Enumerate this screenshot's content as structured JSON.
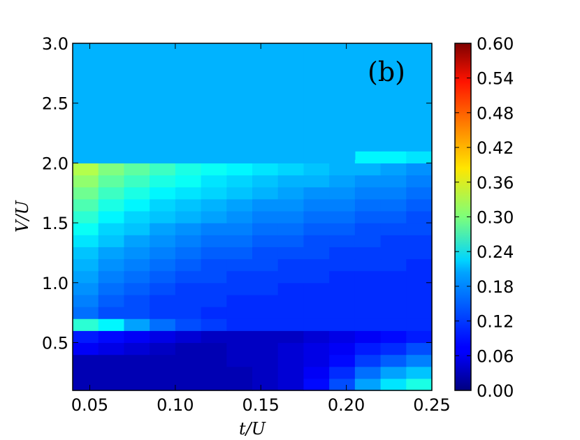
{
  "chart_data": {
    "type": "heatmap",
    "panel_label": "(b)",
    "xlabel": "t/U",
    "ylabel": "V/U",
    "xlim": [
      0.04,
      0.25
    ],
    "ylim": [
      0.1,
      3.0
    ],
    "x_ticks": [
      0.05,
      0.1,
      0.15,
      0.2,
      0.25
    ],
    "x_tick_labels": [
      "0.05",
      "0.10",
      "0.15",
      "0.20",
      "0.25"
    ],
    "y_ticks": [
      0.5,
      1.0,
      1.5,
      2.0,
      2.5,
      3.0
    ],
    "y_tick_labels": [
      "0.5",
      "1.0",
      "1.5",
      "2.0",
      "2.5",
      "3.0"
    ],
    "colormap": "jet",
    "colorbar": {
      "min": 0.0,
      "max": 0.6,
      "ticks": [
        0.0,
        0.06,
        0.12,
        0.18,
        0.24,
        0.3,
        0.36,
        0.42,
        0.48,
        0.54,
        0.6
      ],
      "tick_labels": [
        "0.00",
        "0.06",
        "0.12",
        "0.18",
        "0.24",
        "0.30",
        "0.36",
        "0.42",
        "0.48",
        "0.54",
        "0.60"
      ]
    },
    "x_centers": [
      0.0475,
      0.0625,
      0.0775,
      0.0925,
      0.1075,
      0.1225,
      0.1375,
      0.1525,
      0.1675,
      0.1825,
      0.1975,
      0.2125,
      0.2275,
      0.2425
    ],
    "y_centers": [
      0.15,
      0.25,
      0.35,
      0.45,
      0.55,
      0.65,
      0.75,
      0.85,
      0.95,
      1.05,
      1.15,
      1.25,
      1.35,
      1.45,
      1.55,
      1.65,
      1.75,
      1.85,
      1.95,
      2.05,
      2.5
    ],
    "values": [
      [
        0.03,
        0.03,
        0.03,
        0.03,
        0.03,
        0.03,
        0.03,
        0.04,
        0.05,
        0.08,
        0.12,
        0.17,
        0.21,
        0.24
      ],
      [
        0.03,
        0.03,
        0.03,
        0.03,
        0.03,
        0.03,
        0.03,
        0.04,
        0.05,
        0.07,
        0.1,
        0.14,
        0.17,
        0.19
      ],
      [
        0.03,
        0.03,
        0.03,
        0.03,
        0.03,
        0.03,
        0.04,
        0.04,
        0.05,
        0.06,
        0.08,
        0.11,
        0.13,
        0.15
      ],
      [
        0.07,
        0.06,
        0.05,
        0.04,
        0.03,
        0.03,
        0.04,
        0.04,
        0.05,
        0.06,
        0.07,
        0.09,
        0.1,
        0.12
      ],
      [
        0.09,
        0.08,
        0.07,
        0.06,
        0.05,
        0.04,
        0.04,
        0.04,
        0.04,
        0.05,
        0.06,
        0.07,
        0.08,
        0.09
      ],
      [
        0.25,
        0.22,
        0.17,
        0.14,
        0.12,
        0.11,
        0.1,
        0.1,
        0.1,
        0.1,
        0.1,
        0.1,
        0.1,
        0.1
      ],
      [
        0.14,
        0.12,
        0.12,
        0.11,
        0.11,
        0.1,
        0.1,
        0.1,
        0.1,
        0.1,
        0.1,
        0.1,
        0.1,
        0.1
      ],
      [
        0.15,
        0.13,
        0.12,
        0.11,
        0.11,
        0.11,
        0.1,
        0.1,
        0.1,
        0.1,
        0.1,
        0.1,
        0.1,
        0.1
      ],
      [
        0.16,
        0.14,
        0.13,
        0.12,
        0.11,
        0.11,
        0.11,
        0.11,
        0.1,
        0.1,
        0.1,
        0.1,
        0.1,
        0.1
      ],
      [
        0.17,
        0.15,
        0.14,
        0.13,
        0.12,
        0.12,
        0.11,
        0.11,
        0.11,
        0.11,
        0.1,
        0.1,
        0.1,
        0.1
      ],
      [
        0.18,
        0.16,
        0.15,
        0.14,
        0.13,
        0.12,
        0.12,
        0.12,
        0.11,
        0.11,
        0.11,
        0.11,
        0.11,
        0.1
      ],
      [
        0.19,
        0.17,
        0.16,
        0.15,
        0.14,
        0.13,
        0.13,
        0.12,
        0.12,
        0.12,
        0.11,
        0.11,
        0.11,
        0.11
      ],
      [
        0.21,
        0.19,
        0.17,
        0.16,
        0.15,
        0.14,
        0.14,
        0.13,
        0.13,
        0.12,
        0.12,
        0.12,
        0.11,
        0.11
      ],
      [
        0.23,
        0.2,
        0.19,
        0.17,
        0.16,
        0.15,
        0.15,
        0.14,
        0.14,
        0.13,
        0.13,
        0.12,
        0.12,
        0.12
      ],
      [
        0.25,
        0.22,
        0.2,
        0.19,
        0.18,
        0.17,
        0.16,
        0.15,
        0.15,
        0.14,
        0.14,
        0.13,
        0.13,
        0.12
      ],
      [
        0.27,
        0.24,
        0.22,
        0.2,
        0.19,
        0.18,
        0.17,
        0.16,
        0.16,
        0.15,
        0.15,
        0.14,
        0.14,
        0.13
      ],
      [
        0.29,
        0.26,
        0.24,
        0.22,
        0.21,
        0.2,
        0.19,
        0.18,
        0.17,
        0.16,
        0.16,
        0.15,
        0.15,
        0.14
      ],
      [
        0.31,
        0.28,
        0.26,
        0.24,
        0.23,
        0.21,
        0.2,
        0.19,
        0.18,
        0.18,
        0.17,
        0.16,
        0.16,
        0.15
      ],
      [
        0.33,
        0.3,
        0.28,
        0.26,
        0.24,
        0.23,
        0.22,
        0.21,
        0.2,
        0.19,
        0.18,
        0.18,
        0.17,
        0.16
      ],
      [
        0.18,
        0.18,
        0.18,
        0.18,
        0.18,
        0.18,
        0.18,
        0.18,
        0.18,
        0.18,
        0.18,
        0.22,
        0.22,
        0.21
      ],
      [
        0.18,
        0.18,
        0.18,
        0.18,
        0.18,
        0.18,
        0.18,
        0.18,
        0.18,
        0.18,
        0.18,
        0.18,
        0.18,
        0.18
      ]
    ],
    "region_boundaries_y": [
      {
        "x_range": [
          0.04,
          0.205
        ],
        "y": 2.03
      },
      {
        "x_range": [
          0.205,
          0.25
        ],
        "y": 2.1
      }
    ],
    "grid": false
  }
}
